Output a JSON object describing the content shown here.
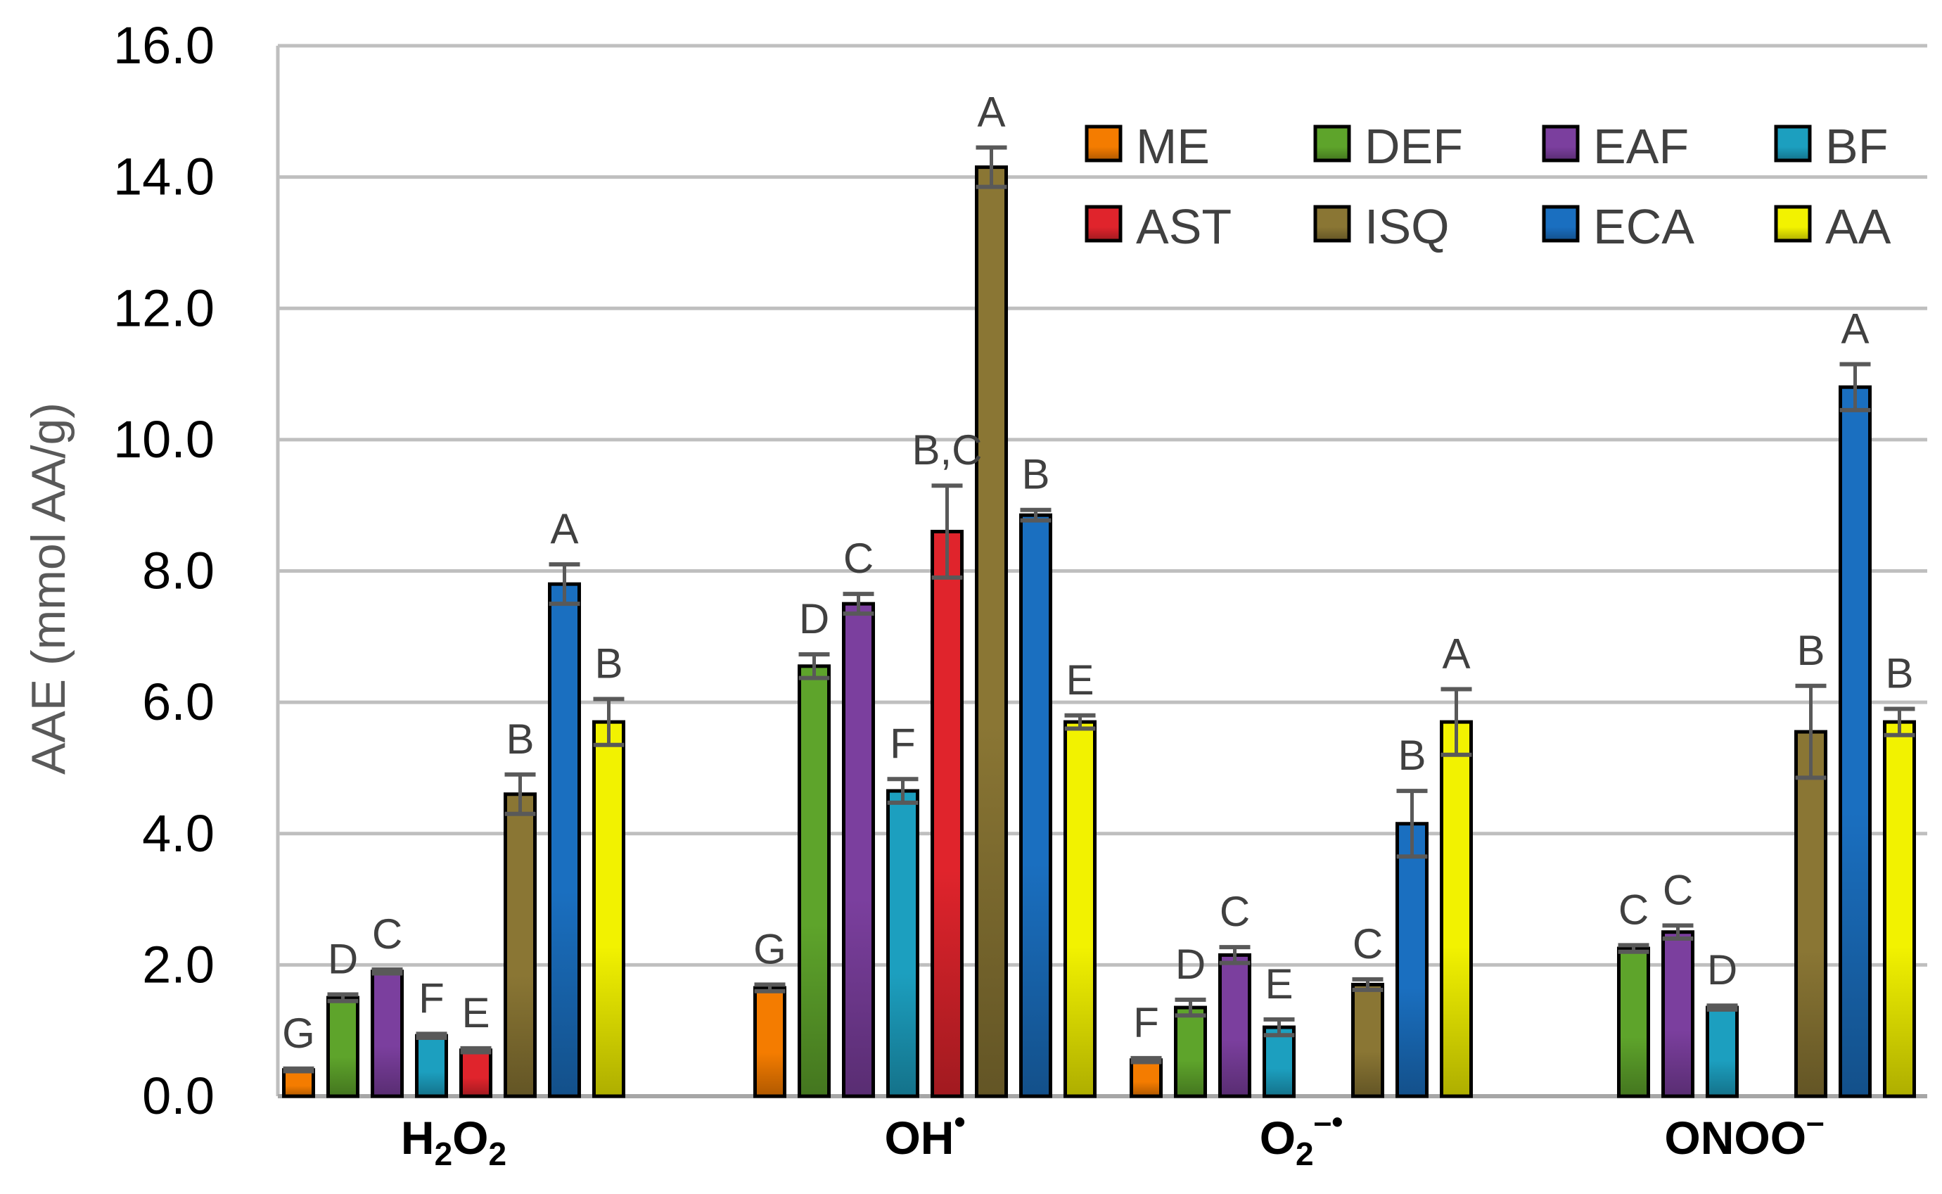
{
  "chart_data": {
    "type": "bar",
    "title": "",
    "xlabel": "",
    "ylabel": "AAE (mmol AA/g)",
    "ylim": [
      0,
      16
    ],
    "yticks": [
      0,
      2,
      4,
      6,
      8,
      10,
      12,
      14,
      16
    ],
    "ytick_labels": [
      "0.0",
      "2.0",
      "4.0",
      "6.0",
      "8.0",
      "10.0",
      "12.0",
      "14.0",
      "16.0"
    ],
    "grid": true,
    "legend_position": "top-right",
    "categories": [
      {
        "main": "H",
        "sub1": "2",
        "mid": "O",
        "sub2": "2",
        "sup": ""
      },
      {
        "main": "OH",
        "sub1": "",
        "mid": "",
        "sub2": "",
        "sup": "•"
      },
      {
        "main": "O",
        "sub1": "2",
        "mid": "",
        "sub2": "",
        "sup": "–•"
      },
      {
        "main": "ONOO",
        "sub1": "",
        "mid": "",
        "sub2": "",
        "sup": "–"
      }
    ],
    "series": [
      {
        "name": "ME",
        "color": "#F47C00",
        "values": [
          0.4,
          1.65,
          0.55,
          null
        ],
        "errors": [
          0.02,
          0.05,
          0.03,
          null
        ],
        "letters": [
          "G",
          "G",
          "F",
          ""
        ]
      },
      {
        "name": "DEF",
        "color": "#5EA42B",
        "values": [
          1.5,
          6.55,
          1.35,
          2.25
        ],
        "errors": [
          0.05,
          0.18,
          0.12,
          0.05
        ],
        "letters": [
          "D",
          "D",
          "D",
          "C"
        ]
      },
      {
        "name": "EAF",
        "color": "#7B3F9E",
        "values": [
          1.9,
          7.5,
          2.15,
          2.5
        ],
        "errors": [
          0.03,
          0.15,
          0.12,
          0.1
        ],
        "letters": [
          "C",
          "C",
          "C",
          "C"
        ]
      },
      {
        "name": "BF",
        "color": "#1C9FBF",
        "values": [
          0.92,
          4.65,
          1.05,
          1.35
        ],
        "errors": [
          0.03,
          0.18,
          0.12,
          0.03
        ],
        "letters": [
          "F",
          "F",
          "E",
          "D"
        ]
      },
      {
        "name": "AST",
        "color": "#E0242C",
        "values": [
          0.7,
          8.6,
          null,
          null
        ],
        "errors": [
          0.03,
          0.7,
          null,
          null
        ],
        "letters": [
          "E",
          "B,C",
          "",
          ""
        ]
      },
      {
        "name": "ISQ",
        "color": "#8A7634",
        "values": [
          4.6,
          14.15,
          1.7,
          5.55
        ],
        "errors": [
          0.3,
          0.3,
          0.08,
          0.7
        ],
        "letters": [
          "B",
          "A",
          "C",
          "B"
        ]
      },
      {
        "name": "ECA",
        "color": "#1A6FC0",
        "values": [
          7.8,
          8.85,
          4.15,
          10.8
        ],
        "errors": [
          0.3,
          0.08,
          0.5,
          0.35
        ],
        "letters": [
          "A",
          "B",
          "B",
          "A"
        ]
      },
      {
        "name": "AA",
        "color": "#F2F200",
        "values": [
          5.7,
          5.7,
          5.7,
          5.7
        ],
        "errors": [
          0.35,
          0.1,
          0.5,
          0.2
        ],
        "letters": [
          "B",
          "E",
          "A",
          "B"
        ]
      }
    ]
  }
}
